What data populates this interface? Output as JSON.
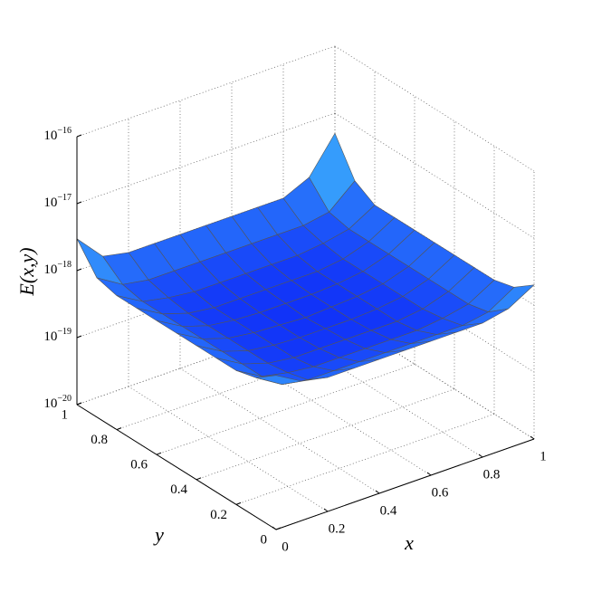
{
  "chart_data": {
    "type": "surface",
    "xlabel": "x",
    "ylabel": "y",
    "zlabel": "E(x,y)",
    "x": [
      0,
      0.1,
      0.2,
      0.3,
      0.4,
      0.5,
      0.6,
      0.7,
      0.8,
      0.9,
      1
    ],
    "y": [
      0,
      0.1,
      0.2,
      0.3,
      0.4,
      0.5,
      0.6,
      0.7,
      0.8,
      0.9,
      1
    ],
    "z": [
      [
        2e-18,
        1.2e-18,
        1e-18,
        1e-18,
        1e-18,
        1e-18,
        1e-18,
        1e-18,
        1e-18,
        1.2e-18,
        2e-18
      ],
      [
        1.2e-18,
        7e-19,
        6e-19,
        6e-19,
        6e-19,
        6e-19,
        6e-19,
        6e-19,
        6e-19,
        7e-19,
        1.2e-18
      ],
      [
        1e-18,
        6e-19,
        5e-19,
        4.5e-19,
        4.5e-19,
        4.5e-19,
        4.5e-19,
        4.5e-19,
        5e-19,
        6e-19,
        1e-18
      ],
      [
        1e-18,
        6e-19,
        4.5e-19,
        4e-19,
        4e-19,
        4e-19,
        4e-19,
        4e-19,
        4.5e-19,
        6e-19,
        1e-18
      ],
      [
        1e-18,
        6e-19,
        4.5e-19,
        4e-19,
        3.8e-19,
        3.8e-19,
        3.8e-19,
        4e-19,
        4.5e-19,
        6e-19,
        1e-18
      ],
      [
        1e-18,
        6e-19,
        4.5e-19,
        4e-19,
        3.8e-19,
        3.6e-19,
        3.8e-19,
        4e-19,
        4.5e-19,
        6e-19,
        1e-18
      ],
      [
        1e-18,
        6e-19,
        4.5e-19,
        4e-19,
        3.8e-19,
        3.8e-19,
        3.8e-19,
        4e-19,
        4.5e-19,
        6e-19,
        1e-18
      ],
      [
        1e-18,
        6e-19,
        4.5e-19,
        4e-19,
        4e-19,
        4e-19,
        4e-19,
        4e-19,
        4.5e-19,
        6e-19,
        1e-18
      ],
      [
        1e-18,
        6e-19,
        5e-19,
        4.5e-19,
        4.5e-19,
        4.5e-19,
        4.5e-19,
        4.5e-19,
        5e-19,
        6e-19,
        1e-18
      ],
      [
        1.2e-18,
        7e-19,
        6e-19,
        6e-19,
        6e-19,
        6e-19,
        6e-19,
        6e-19,
        6e-19,
        7e-19,
        1.5e-18
      ],
      [
        3e-18,
        1.2e-18,
        1e-18,
        1e-18,
        1e-18,
        1e-18,
        1e-18,
        1e-18,
        1e-18,
        1.5e-18,
        5e-18
      ]
    ],
    "xlim": [
      0,
      1
    ],
    "ylim": [
      0,
      1
    ],
    "zlim": [
      1e-20,
      1e-16
    ],
    "zscale": "log",
    "xticks": [
      0,
      0.2,
      0.4,
      0.6,
      0.8,
      1
    ],
    "yticks": [
      0,
      0.2,
      0.4,
      0.6,
      0.8,
      1
    ],
    "zticks": [
      {
        "value": 1e-20,
        "label": "10",
        "exponent": "−20"
      },
      {
        "value": 1e-19,
        "label": "10",
        "exponent": "−19"
      },
      {
        "value": 1e-18,
        "label": "10",
        "exponent": "−18"
      },
      {
        "value": 1e-17,
        "label": "10",
        "exponent": "−17"
      },
      {
        "value": 1e-16,
        "label": "10",
        "exponent": "−16"
      }
    ],
    "grid": true,
    "colormap": [
      "#1030f8",
      "#50e8ff"
    ],
    "edgecolor": "#555555"
  }
}
